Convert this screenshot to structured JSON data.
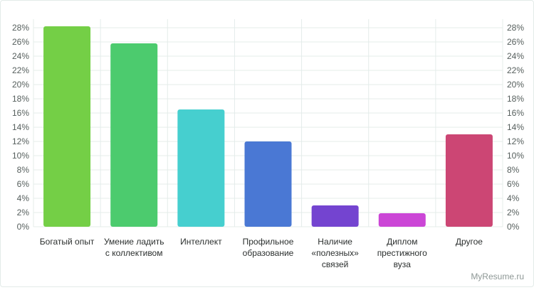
{
  "chart_data": {
    "type": "bar",
    "title": "",
    "xlabel": "",
    "ylabel": "",
    "ylim": [
      0,
      28
    ],
    "yticks": [
      "0%",
      "2%",
      "4%",
      "6%",
      "8%",
      "10%",
      "12%",
      "14%",
      "16%",
      "18%",
      "20%",
      "22%",
      "24%",
      "26%",
      "28%"
    ],
    "y_axis_both_sides": true,
    "grid": true,
    "categories": [
      [
        "Богатый опыт"
      ],
      [
        "Умение ладить",
        "с коллективом"
      ],
      [
        "Интеллект"
      ],
      [
        "Профильное",
        "образование"
      ],
      [
        "Наличие",
        "«полезных»",
        "связей"
      ],
      [
        "Диплом",
        "престижного",
        "вуза"
      ],
      [
        "Другое"
      ]
    ],
    "values": [
      28.2,
      25.8,
      16.5,
      12.0,
      3.0,
      1.9,
      13.0
    ],
    "colors": [
      "#74cf46",
      "#4ccb6e",
      "#46cfcf",
      "#4a78d4",
      "#7444d0",
      "#cb46d6",
      "#cc4674"
    ]
  },
  "watermark": "MyResume.ru"
}
